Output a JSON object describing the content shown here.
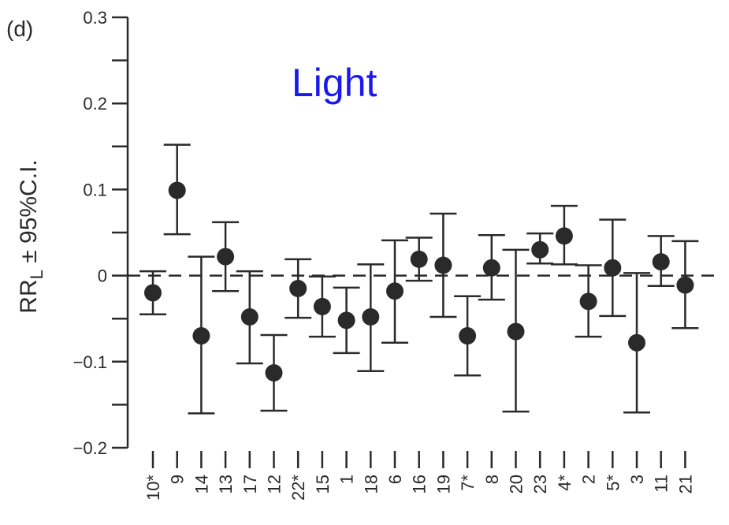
{
  "chart_data": {
    "type": "scatter",
    "panel_label": "(d)",
    "title": "Light",
    "xlabel": "",
    "ylabel": {
      "main": "RR",
      "subscript": "L",
      "suffix": " ± 95%C.I."
    },
    "ylim": [
      -0.2,
      0.3
    ],
    "yticks": [
      -0.2,
      -0.1,
      0,
      0.1,
      0.2,
      0.3
    ],
    "ytick_labels": [
      "−0.2",
      "−0.1",
      "0",
      "0.1",
      "0.2",
      "0.3"
    ],
    "reference_line": {
      "y": 0,
      "style": "dashed"
    },
    "categories": [
      "10*",
      "9",
      "14",
      "13",
      "17",
      "12",
      "22*",
      "15",
      "1",
      "18",
      "6",
      "16",
      "19",
      "7*",
      "8",
      "20",
      "23",
      "4*",
      "2",
      "5*",
      "3",
      "11",
      "21"
    ],
    "series": [
      {
        "values": [
          -0.02,
          0.099,
          -0.07,
          0.022,
          -0.048,
          -0.113,
          -0.015,
          -0.036,
          -0.052,
          -0.048,
          -0.018,
          0.019,
          0.012,
          -0.07,
          0.009,
          -0.065,
          0.03,
          0.046,
          -0.03,
          0.009,
          -0.078,
          0.016,
          -0.011
        ],
        "ci_lower": [
          -0.045,
          0.048,
          -0.16,
          -0.018,
          -0.102,
          -0.157,
          -0.049,
          -0.071,
          -0.09,
          -0.111,
          -0.078,
          -0.006,
          -0.048,
          -0.116,
          -0.028,
          -0.158,
          0.014,
          0.013,
          -0.071,
          -0.047,
          -0.159,
          -0.012,
          -0.061
        ],
        "ci_upper": [
          0.005,
          0.152,
          0.022,
          0.062,
          0.005,
          -0.069,
          0.019,
          -0.001,
          -0.014,
          0.013,
          0.041,
          0.044,
          0.072,
          -0.024,
          0.047,
          0.03,
          0.049,
          0.081,
          0.012,
          0.065,
          0.003,
          0.046,
          0.04
        ]
      }
    ],
    "grid": false,
    "legend": "none",
    "colors": {
      "marker": "#2a2a2a",
      "axis": "#2a2a2a",
      "title": "#1a1aee"
    }
  }
}
